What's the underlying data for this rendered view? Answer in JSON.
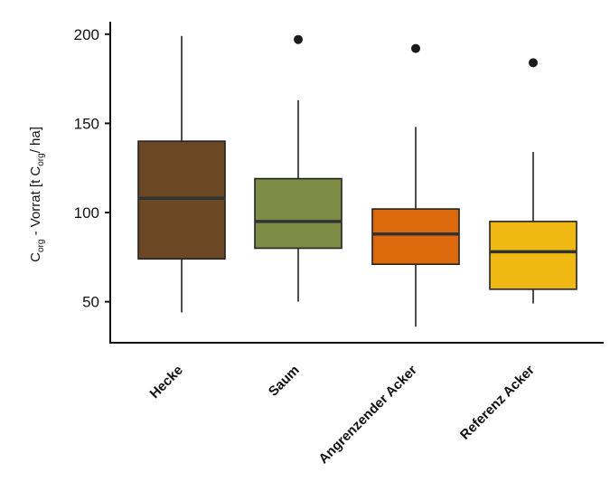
{
  "chart_data": {
    "type": "boxplot",
    "categories": [
      "Hecke",
      "Saum",
      "Angrenzender Acker",
      "Referenz Acker"
    ],
    "ylabel_parts": [
      "C",
      "org",
      " - Vorrat [t C",
      "org",
      "/ ha]"
    ],
    "ylim": [
      27,
      207
    ],
    "yticks": [
      50,
      100,
      150,
      200
    ],
    "ytick_labels": [
      "50",
      "100",
      "150",
      "200"
    ],
    "grid": false,
    "legend": "none",
    "series": [
      {
        "category": "Hecke",
        "whisker_low": 44,
        "q1": 74,
        "median": 108,
        "q3": 140,
        "whisker_high": 199,
        "outliers": [],
        "color": "#6b4723"
      },
      {
        "category": "Saum",
        "whisker_low": 50,
        "q1": 80,
        "median": 95,
        "q3": 119,
        "whisker_high": 163,
        "outliers": [
          197
        ],
        "color": "#7f8c46"
      },
      {
        "category": "Angrenzender Acker",
        "whisker_low": 36,
        "q1": 71,
        "median": 88,
        "q3": 102,
        "whisker_high": 148,
        "outliers": [
          192
        ],
        "color": "#dc6a0c"
      },
      {
        "category": "Referenz Acker",
        "whisker_low": 49,
        "q1": 57,
        "median": 78,
        "q3": 95,
        "whisker_high": 134,
        "outliers": [
          184
        ],
        "color": "#efb812"
      }
    ]
  }
}
